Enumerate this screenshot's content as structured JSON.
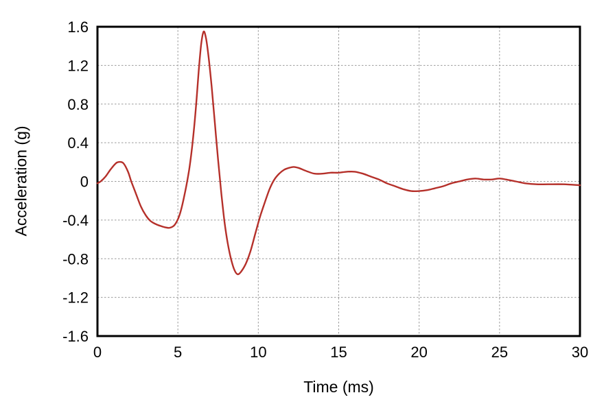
{
  "chart_data": {
    "type": "line",
    "title": "",
    "xlabel": "Time (ms)",
    "ylabel": "Acceleration (g)",
    "xlim": [
      0,
      30
    ],
    "ylim": [
      -1.6,
      1.6
    ],
    "xticks": [
      0,
      5,
      10,
      15,
      20,
      25,
      30
    ],
    "xtick_labels": [
      "0",
      "5",
      "10",
      "15",
      "20",
      "25",
      "30"
    ],
    "yticks": [
      -1.6,
      -1.2,
      -0.8,
      -0.4,
      0,
      0.4,
      0.8,
      1.2,
      1.6
    ],
    "ytick_labels": [
      "-1.6",
      "-1.2",
      "-0.8",
      "-0.4",
      "0",
      "0.4",
      "0.8",
      "1.2",
      "1.6"
    ],
    "grid": true,
    "grid_style": "dashed",
    "legend": "none",
    "series": [
      {
        "name": "acceleration",
        "points": [
          [
            0.0,
            -0.02
          ],
          [
            0.2,
            0.0
          ],
          [
            0.5,
            0.05
          ],
          [
            0.8,
            0.12
          ],
          [
            1.1,
            0.18
          ],
          [
            1.3,
            0.2
          ],
          [
            1.6,
            0.19
          ],
          [
            1.9,
            0.1
          ],
          [
            2.1,
            0.0
          ],
          [
            2.4,
            -0.13
          ],
          [
            2.7,
            -0.26
          ],
          [
            3.0,
            -0.35
          ],
          [
            3.3,
            -0.41
          ],
          [
            3.6,
            -0.44
          ],
          [
            3.9,
            -0.46
          ],
          [
            4.2,
            -0.475
          ],
          [
            4.5,
            -0.48
          ],
          [
            4.8,
            -0.45
          ],
          [
            5.1,
            -0.35
          ],
          [
            5.4,
            -0.15
          ],
          [
            5.7,
            0.12
          ],
          [
            5.9,
            0.38
          ],
          [
            6.1,
            0.72
          ],
          [
            6.3,
            1.15
          ],
          [
            6.45,
            1.42
          ],
          [
            6.6,
            1.55
          ],
          [
            6.75,
            1.48
          ],
          [
            6.9,
            1.3
          ],
          [
            7.1,
            0.98
          ],
          [
            7.3,
            0.6
          ],
          [
            7.5,
            0.22
          ],
          [
            7.7,
            -0.12
          ],
          [
            7.9,
            -0.42
          ],
          [
            8.1,
            -0.64
          ],
          [
            8.3,
            -0.8
          ],
          [
            8.5,
            -0.91
          ],
          [
            8.7,
            -0.96
          ],
          [
            8.9,
            -0.94
          ],
          [
            9.2,
            -0.86
          ],
          [
            9.5,
            -0.73
          ],
          [
            9.8,
            -0.55
          ],
          [
            10.1,
            -0.37
          ],
          [
            10.4,
            -0.22
          ],
          [
            10.7,
            -0.08
          ],
          [
            11.0,
            0.02
          ],
          [
            11.3,
            0.08
          ],
          [
            11.6,
            0.12
          ],
          [
            11.9,
            0.14
          ],
          [
            12.2,
            0.15
          ],
          [
            12.5,
            0.14
          ],
          [
            12.8,
            0.12
          ],
          [
            13.1,
            0.1
          ],
          [
            13.5,
            0.08
          ],
          [
            14.0,
            0.08
          ],
          [
            14.5,
            0.09
          ],
          [
            15.0,
            0.09
          ],
          [
            15.5,
            0.1
          ],
          [
            16.0,
            0.1
          ],
          [
            16.5,
            0.08
          ],
          [
            17.0,
            0.05
          ],
          [
            17.5,
            0.02
          ],
          [
            18.0,
            -0.02
          ],
          [
            18.5,
            -0.05
          ],
          [
            19.0,
            -0.08
          ],
          [
            19.5,
            -0.1
          ],
          [
            20.0,
            -0.1
          ],
          [
            20.5,
            -0.09
          ],
          [
            21.0,
            -0.07
          ],
          [
            21.5,
            -0.05
          ],
          [
            22.0,
            -0.02
          ],
          [
            22.5,
            0.0
          ],
          [
            23.0,
            0.02
          ],
          [
            23.5,
            0.03
          ],
          [
            24.0,
            0.02
          ],
          [
            24.5,
            0.02
          ],
          [
            25.0,
            0.03
          ],
          [
            25.4,
            0.02
          ],
          [
            26.0,
            0.0
          ],
          [
            26.6,
            -0.02
          ],
          [
            27.3,
            -0.03
          ],
          [
            28.0,
            -0.03
          ],
          [
            29.0,
            -0.03
          ],
          [
            30.0,
            -0.04
          ]
        ]
      }
    ],
    "colors": {
      "line": "#b5302a",
      "grid": "#999999",
      "axis": "#000000",
      "text": "#000000",
      "background": "#ffffff"
    }
  }
}
